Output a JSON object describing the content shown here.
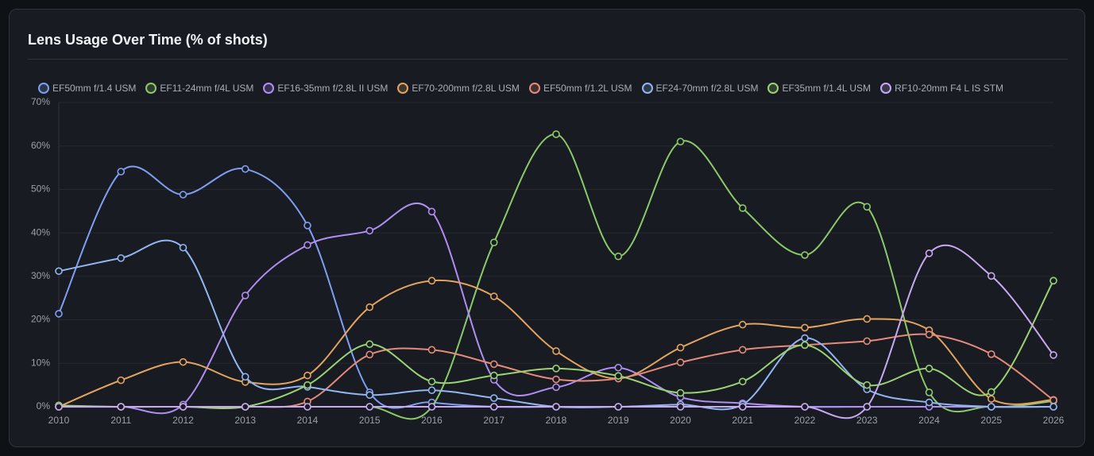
{
  "chart_data": {
    "type": "line",
    "title": "Lens Usage Over Time (% of shots)",
    "categories": [
      "2010",
      "2011",
      "2012",
      "2013",
      "2014",
      "2015",
      "2016",
      "2017",
      "2018",
      "2019",
      "2020",
      "2021",
      "2022",
      "2023",
      "2024",
      "2025",
      "2026"
    ],
    "ylim": [
      0,
      70
    ],
    "yticks": [
      {
        "value": 0,
        "label": "0%"
      },
      {
        "value": 10,
        "label": "10%"
      },
      {
        "value": 20,
        "label": "20%"
      },
      {
        "value": 30,
        "label": "30%"
      },
      {
        "value": 40,
        "label": "40%"
      },
      {
        "value": 50,
        "label": "50%"
      },
      {
        "value": 60,
        "label": "60%"
      },
      {
        "value": 70,
        "label": "70%"
      }
    ],
    "grid": true,
    "series": [
      {
        "name": "EF50mm f/1.4 USM",
        "color": "#7f9ff2",
        "values": [
          21.4,
          54.1,
          48.8,
          54.7,
          41.7,
          3.3,
          1,
          0,
          0,
          0,
          0,
          0,
          0,
          0,
          0,
          0,
          0
        ]
      },
      {
        "name": "EF11-24mm f/4L USM",
        "color": "#8cc96a",
        "values": [
          0,
          0,
          0,
          0,
          0,
          0,
          0,
          37.8,
          62.7,
          34.6,
          61,
          45.7,
          34.9,
          46,
          3.3,
          0,
          1.3
        ]
      },
      {
        "name": "EF16-35mm f/2.8L II USM",
        "color": "#b08ef2",
        "values": [
          0,
          0,
          0.5,
          25.6,
          37.2,
          40.5,
          44.9,
          6.2,
          4.5,
          9,
          2.2,
          0.8,
          0,
          0,
          0,
          0,
          0
        ]
      },
      {
        "name": "EF70-200mm f/2.8L USM",
        "color": "#e3a45f",
        "values": [
          0,
          6.1,
          10.3,
          5.7,
          7.2,
          22.9,
          29,
          25.4,
          12.8,
          6.5,
          13.6,
          18.9,
          18.2,
          20.2,
          17.6,
          1.8,
          1.6
        ]
      },
      {
        "name": "EF50mm f/1.2L USM",
        "color": "#e58b7c",
        "values": [
          0,
          0,
          0,
          0,
          1.2,
          12,
          13.1,
          9.8,
          6.3,
          6.5,
          10.2,
          13.1,
          14.2,
          15.1,
          16.6,
          12.1,
          1.5
        ]
      },
      {
        "name": "EF24-70mm f/2.8L USM",
        "color": "#92b6f2",
        "values": [
          31.2,
          34.2,
          36.6,
          6.9,
          4.6,
          2.7,
          3.8,
          2,
          0,
          0,
          0.5,
          0.5,
          15.8,
          4,
          1,
          0,
          0
        ]
      },
      {
        "name": "EF35mm f/1.4L USM",
        "color": "#9ad274",
        "values": [
          0.3,
          0,
          0,
          0,
          5,
          14.4,
          5.8,
          7.2,
          8.8,
          7.1,
          3.2,
          5.8,
          14.2,
          5,
          8.8,
          3.4,
          29
        ]
      },
      {
        "name": "RF10-20mm F4 L IS STM",
        "color": "#c8a9f2",
        "values": [
          0,
          0,
          0,
          0,
          0,
          0,
          0,
          0,
          0,
          0,
          0,
          0,
          0,
          0,
          35.3,
          30.1,
          11.9
        ]
      }
    ]
  }
}
